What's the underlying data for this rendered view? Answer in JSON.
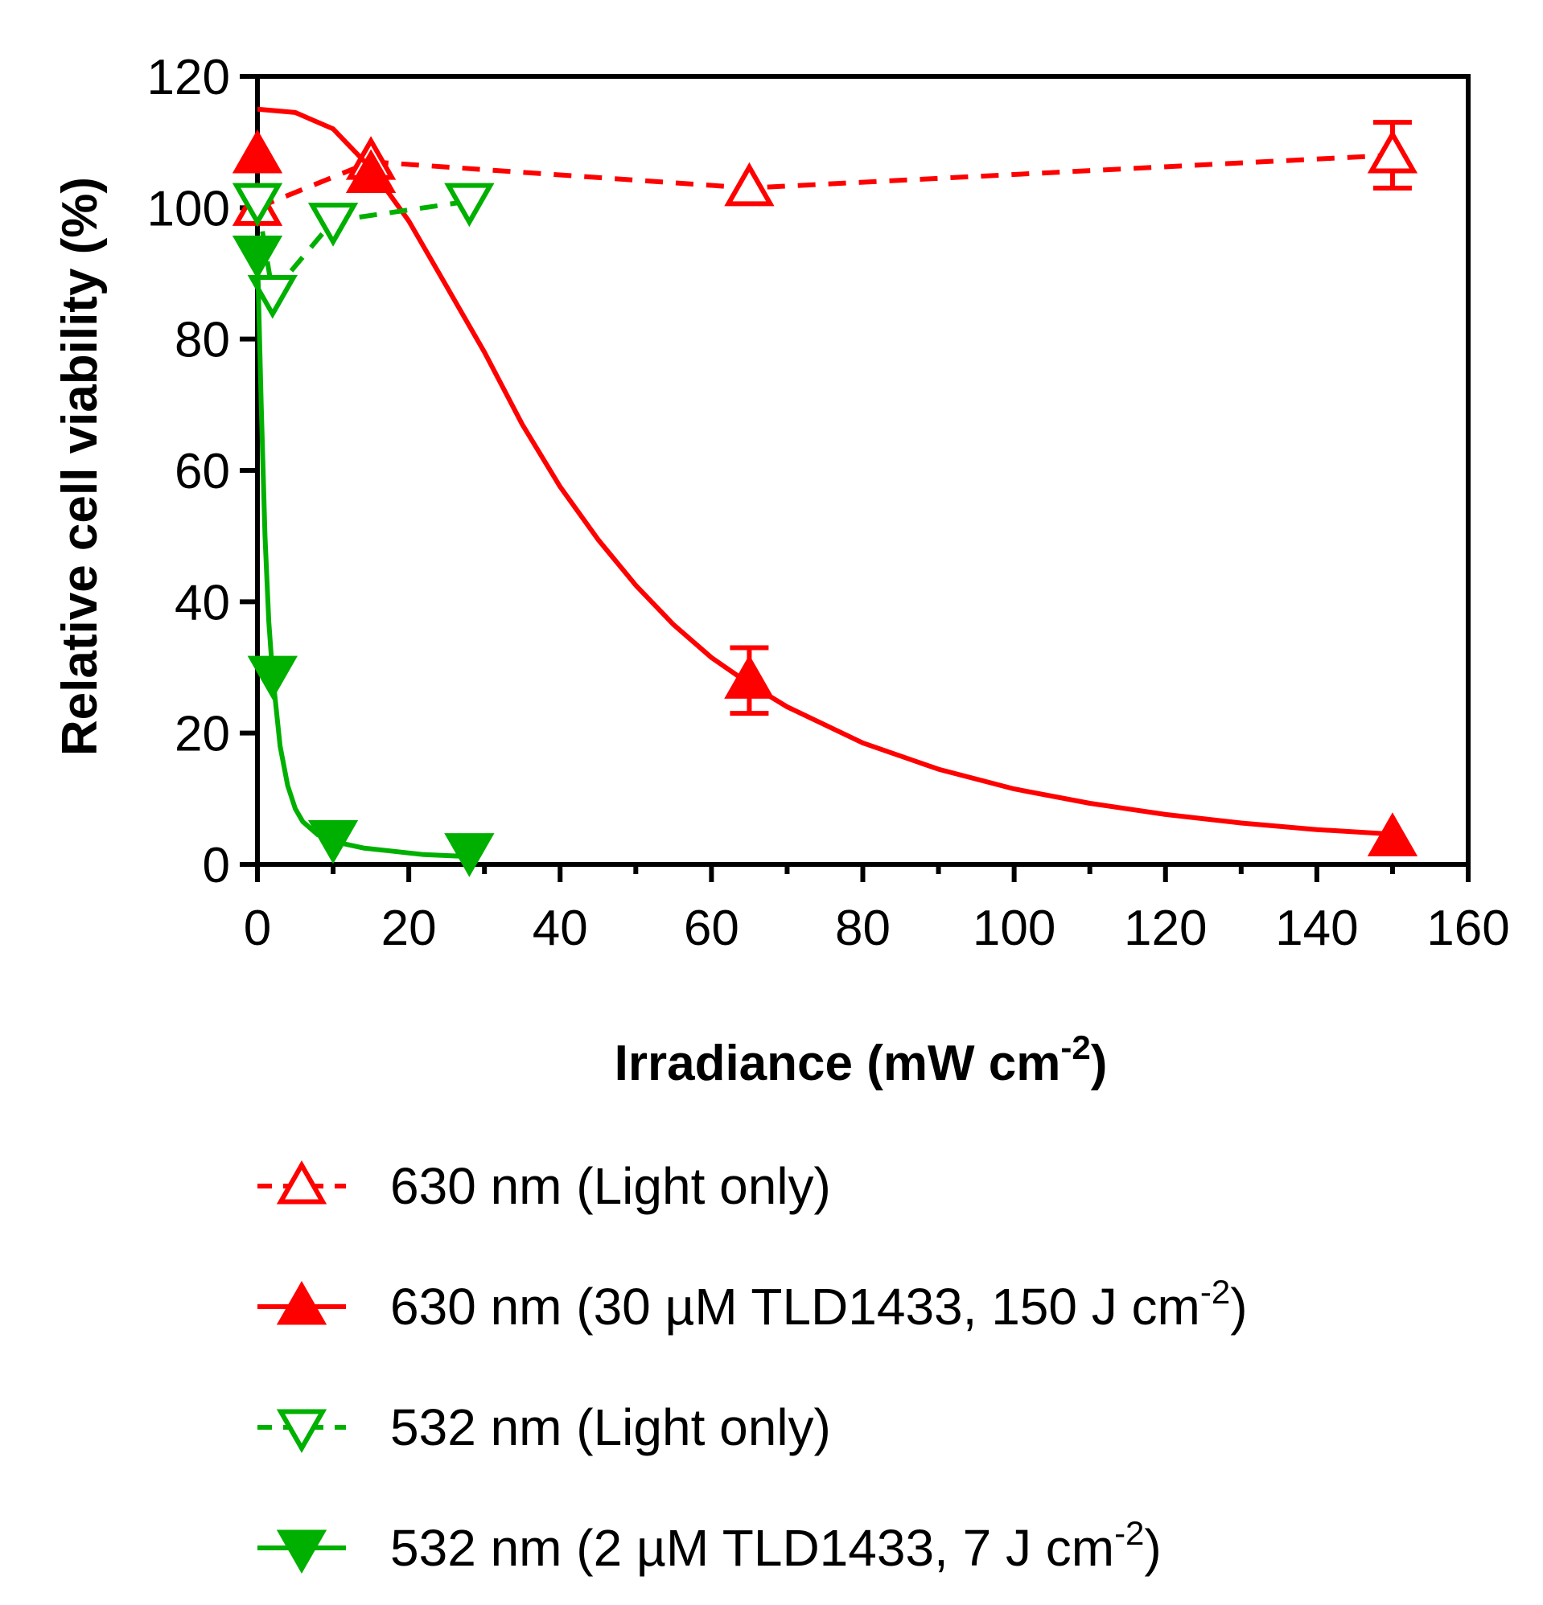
{
  "chart_data": {
    "type": "line",
    "title": "",
    "xlabel": "Irradiance (mW cm",
    "xlabel_sup": "-2",
    "xlabel_tail": ")",
    "ylabel": "Relative cell viability (%)",
    "xlim": [
      0,
      160
    ],
    "ylim": [
      0,
      120
    ],
    "x_ticks": [
      0,
      20,
      40,
      60,
      80,
      100,
      120,
      140,
      160
    ],
    "y_ticks": [
      0,
      20,
      40,
      60,
      80,
      100,
      120
    ],
    "grid": false,
    "legend_position": "bottom",
    "series": [
      {
        "name": "630 nm (Light only)",
        "legend_label": "630 nm (Light only)",
        "legend_sup": "",
        "legend_tail": "",
        "color": "#ff0000",
        "line": "dashed",
        "marker": "triangle-up-open",
        "fit": false,
        "x": [
          0,
          15,
          65,
          150
        ],
        "y": [
          100,
          107,
          103,
          108
        ],
        "err": [
          0,
          0,
          0,
          5
        ]
      },
      {
        "name": "630 nm (30 µM TLD1433, 150 J cm-2)",
        "legend_label": "630 nm (30 µM TLD1433, 150 J cm",
        "legend_sup": "-2",
        "legend_tail": ")",
        "color": "#ff0000",
        "line": "solid",
        "marker": "triangle-up-filled",
        "fit": true,
        "x": [
          0,
          15,
          65,
          150
        ],
        "y": [
          108,
          105,
          28,
          4
        ],
        "err": [
          0,
          0,
          5,
          0
        ],
        "fit_curve": {
          "x": [
            0,
            5,
            10,
            15,
            20,
            25,
            30,
            35,
            40,
            45,
            50,
            55,
            60,
            65,
            70,
            80,
            90,
            100,
            110,
            120,
            130,
            140,
            150
          ],
          "y": [
            115,
            114.5,
            112,
            106,
            98,
            88,
            78,
            67,
            57.5,
            49.5,
            42.5,
            36.5,
            31.5,
            27.5,
            24,
            18.5,
            14.5,
            11.5,
            9.3,
            7.6,
            6.3,
            5.3,
            4.6
          ]
        }
      },
      {
        "name": "532 nm (Light only)",
        "legend_label": "532 nm (Light only)",
        "legend_sup": "",
        "legend_tail": "",
        "color": "#00b000",
        "line": "dashed",
        "marker": "triangle-down-open",
        "fit": false,
        "x": [
          0,
          2,
          10,
          28
        ],
        "y": [
          101,
          87,
          98,
          101
        ],
        "err": [
          0,
          0,
          0,
          0
        ]
      },
      {
        "name": "532 nm (2 µM TLD1433, 7 J cm-2)",
        "legend_label": "532 nm (2 µM TLD1433, 7 J cm",
        "legend_sup": "-2",
        "legend_tail": ")",
        "color": "#00b000",
        "line": "solid",
        "marker": "triangle-down-filled",
        "fit": true,
        "x": [
          0,
          2,
          10,
          28
        ],
        "y": [
          93,
          29,
          4,
          2
        ],
        "err": [
          0,
          0,
          0,
          0
        ],
        "fit_curve": {
          "x": [
            0,
            0.5,
            1,
            1.5,
            2,
            3,
            4,
            5,
            6,
            8,
            10,
            14,
            18,
            22,
            28
          ],
          "y": [
            93,
            70,
            50,
            37,
            29,
            18,
            12,
            8.5,
            6.5,
            4.5,
            3.5,
            2.5,
            2,
            1.5,
            1.2
          ]
        }
      }
    ]
  }
}
